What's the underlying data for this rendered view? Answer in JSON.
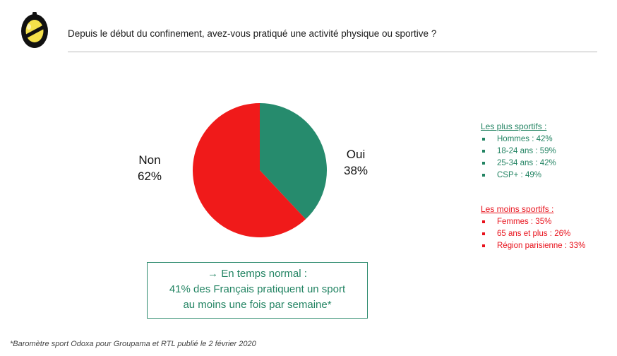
{
  "header": {
    "question": "Depuis le début du confinement, avez-vous pratiqué une activité physique ou sportive ?"
  },
  "chart_data": {
    "type": "pie",
    "categories": [
      "Oui",
      "Non"
    ],
    "values": [
      38,
      62
    ],
    "labels": [
      "38%",
      "62%"
    ],
    "colors": [
      "#268b6d",
      "#f01a1a"
    ]
  },
  "note": {
    "line1": "→ En temps normal :",
    "line2": "41% des Français pratiquent un sport",
    "line3": "au moins une fois par semaine*"
  },
  "plus_sportifs": {
    "title": "Les plus sportifs :",
    "items": [
      "Hommes : 42%",
      "18-24 ans : 59%",
      "25-34 ans : 42%",
      "CSP+ : 49%"
    ]
  },
  "moins_sportifs": {
    "title": "Les moins sportifs :",
    "items": [
      "Femmes : 35%",
      "65 ans et plus : 26%",
      "Région parisienne  : 33%"
    ]
  },
  "footer": {
    "source": "*Baromètre sport Odoxa pour Groupama et RTL publié le 2 février 2020"
  },
  "logo_icon": "odoxa-logo-icon"
}
